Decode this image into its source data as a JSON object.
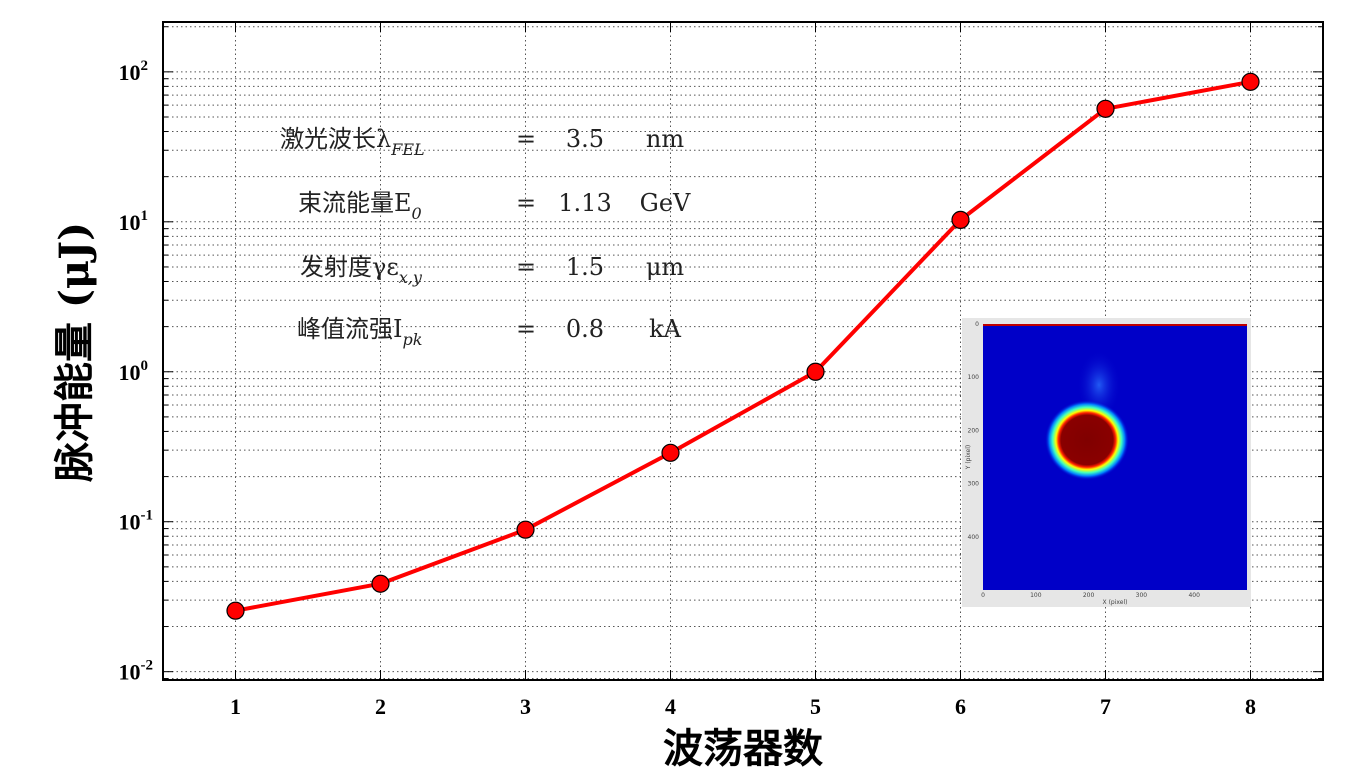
{
  "chart_data": {
    "type": "line",
    "title": "",
    "xlabel": "波荡器数",
    "ylabel": "脉冲能量 (μJ)",
    "x": [
      1,
      2,
      3,
      4,
      5,
      6,
      7,
      8
    ],
    "series": [
      {
        "values": [
          0.0255,
          0.0386,
          0.0885,
          0.288,
          1.0,
          10.3,
          56.7,
          85.8
        ],
        "color": "#ff0000",
        "marker": "circle",
        "marker_color": "#ff0000"
      }
    ],
    "xlim": [
      0.5,
      8.5
    ],
    "ylim": [
      0.0088,
      215
    ],
    "yscale": "log",
    "x_ticks": [
      "1",
      "2",
      "3",
      "4",
      "5",
      "6",
      "7",
      "8"
    ],
    "y_ticks": [
      {
        "base": "10",
        "exp": "-2"
      },
      {
        "base": "10",
        "exp": "-1"
      },
      {
        "base": "10",
        "exp": "0"
      },
      {
        "base": "10",
        "exp": "1"
      },
      {
        "base": "10",
        "exp": "2"
      }
    ],
    "grid": true,
    "annotations": [
      {
        "label": "激光波长λ",
        "sub": "FEL",
        "eq": "=",
        "value": "3.5",
        "unit": "nm"
      },
      {
        "label": "束流能量E",
        "sub": "0",
        "eq": "=",
        "value": "1.13",
        "unit": "GeV"
      },
      {
        "label": "发射度γε",
        "sub": "x,y",
        "eq": "=",
        "value": "1.5",
        "unit": "μm"
      },
      {
        "label": "峰值流强I",
        "sub": "pk",
        "eq": "=",
        "value": "0.8",
        "unit": "kA"
      }
    ],
    "inset": {
      "type": "heatmap",
      "xlabel": "X (pixel)",
      "ylabel": "Y (pixel)",
      "x_ticks": [
        "0",
        "100",
        "200",
        "300",
        "400"
      ],
      "y_ticks": [
        "0",
        "100",
        "200",
        "300",
        "400"
      ],
      "range": [
        0,
        500
      ],
      "spot_center": [
        197,
        218
      ],
      "colormap": "jet"
    }
  }
}
